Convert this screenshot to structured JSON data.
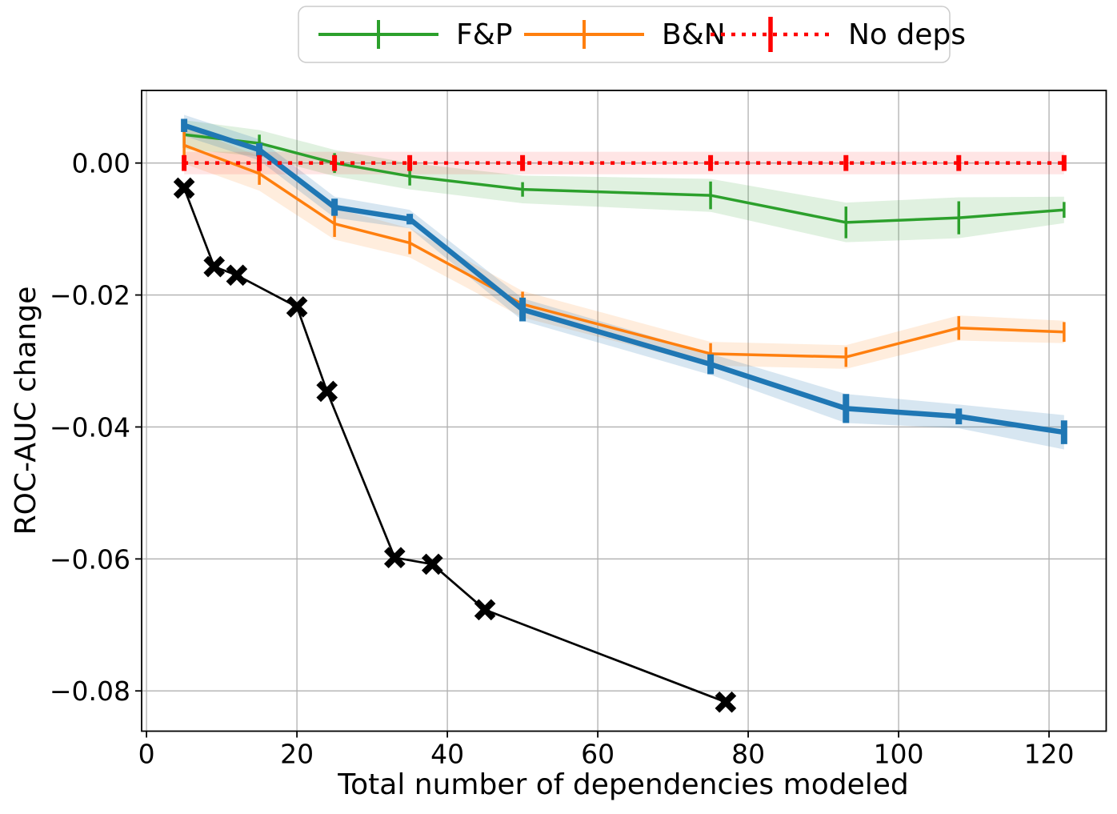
{
  "chart_data": {
    "type": "line",
    "title": "",
    "xlabel": "Total number of dependencies modeled",
    "ylabel": "ROC-AUC change",
    "xlim": [
      -0.65,
      127.6
    ],
    "ylim": [
      -0.0861,
      0.011
    ],
    "grid": true,
    "x_ticks": [
      0,
      20,
      40,
      60,
      80,
      100,
      120
    ],
    "x_tick_labels": [
      "0",
      "20",
      "40",
      "60",
      "80",
      "100",
      "120"
    ],
    "y_ticks": [
      0.0,
      -0.02,
      -0.04,
      -0.06,
      -0.08
    ],
    "y_tick_labels": [
      "0.00",
      "−0.02",
      "−0.04",
      "−0.06",
      "−0.08"
    ],
    "colors": {
      "fp": "#2ca02c",
      "bn": "#ff7f0e",
      "main": "#1f77b4",
      "nodeps": "#ff0000",
      "blackx": "#000000",
      "grid": "#b0b0b0"
    },
    "legend": {
      "position": "top-center",
      "entries": [
        {
          "series": "fp",
          "label": "F&P"
        },
        {
          "series": "bn",
          "label": "B&N"
        },
        {
          "series": "nodeps",
          "label": "No deps"
        }
      ]
    },
    "series": [
      {
        "key": "fp",
        "name": "F&P",
        "color": "#2ca02c",
        "style": "solid",
        "x": [
          5,
          15,
          25,
          35,
          50,
          75,
          93,
          108,
          122
        ],
        "y": [
          0.0043,
          0.003,
          0.0,
          -0.002,
          -0.004,
          -0.0049,
          -0.009,
          -0.0083,
          -0.0071
        ],
        "err": [
          0.002,
          0.0013,
          0.0015,
          0.0014,
          0.0011,
          0.0021,
          0.0024,
          0.0025,
          0.0012
        ],
        "band": [
          0.0022,
          0.002,
          0.002,
          0.002,
          0.0021,
          0.0025,
          0.003,
          0.0031,
          0.002
        ]
      },
      {
        "key": "bn",
        "name": "B&N",
        "color": "#ff7f0e",
        "style": "solid",
        "x": [
          5,
          15,
          25,
          35,
          50,
          75,
          93,
          108,
          122
        ],
        "y": [
          0.0027,
          -0.0016,
          -0.0092,
          -0.0121,
          -0.0214,
          -0.0289,
          -0.0294,
          -0.025,
          -0.0256
        ],
        "err": [
          0.0025,
          0.0017,
          0.002,
          0.0017,
          0.0019,
          0.0016,
          0.0015,
          0.0018,
          0.0015
        ],
        "band": [
          0.0028,
          0.0026,
          0.0024,
          0.0022,
          0.002,
          0.0018,
          0.0018,
          0.0019,
          0.0017
        ]
      },
      {
        "key": "main",
        "name": "",
        "color": "#1f77b4",
        "style": "solid",
        "x": [
          5,
          15,
          25,
          35,
          50,
          75,
          93,
          108,
          122
        ],
        "y": [
          0.0057,
          0.002,
          -0.0067,
          -0.0085,
          -0.0222,
          -0.0305,
          -0.0372,
          -0.0384,
          -0.0408
        ],
        "err": [
          0.001,
          0.001,
          0.0013,
          0.0008,
          0.0018,
          0.0015,
          0.0022,
          0.0012,
          0.0018
        ],
        "band": [
          0.0016,
          0.0016,
          0.0016,
          0.0014,
          0.0017,
          0.0016,
          0.0022,
          0.0018,
          0.0026
        ]
      },
      {
        "key": "nodeps",
        "name": "No deps",
        "color": "#ff0000",
        "style": "dotted",
        "x": [
          5,
          15,
          25,
          35,
          50,
          75,
          93,
          108,
          122
        ],
        "y": [
          0,
          0,
          0,
          0,
          0,
          0,
          0,
          0,
          0
        ],
        "err": [
          0.0012,
          0.0012,
          0.0012,
          0.0012,
          0.0012,
          0.0012,
          0.0012,
          0.0012,
          0.0012
        ],
        "band": [
          0.0017,
          0.0017,
          0.0017,
          0.0017,
          0.0017,
          0.0017,
          0.0017,
          0.0017,
          0.0017
        ]
      },
      {
        "key": "blackx",
        "name": "",
        "color": "#000000",
        "style": "solid",
        "marker": "X",
        "x": [
          5,
          9,
          12,
          20,
          24,
          33,
          38,
          45,
          77
        ],
        "y": [
          -0.0038,
          -0.0157,
          -0.017,
          -0.0218,
          -0.0346,
          -0.0598,
          -0.0608,
          -0.0677,
          -0.0817
        ]
      }
    ]
  }
}
